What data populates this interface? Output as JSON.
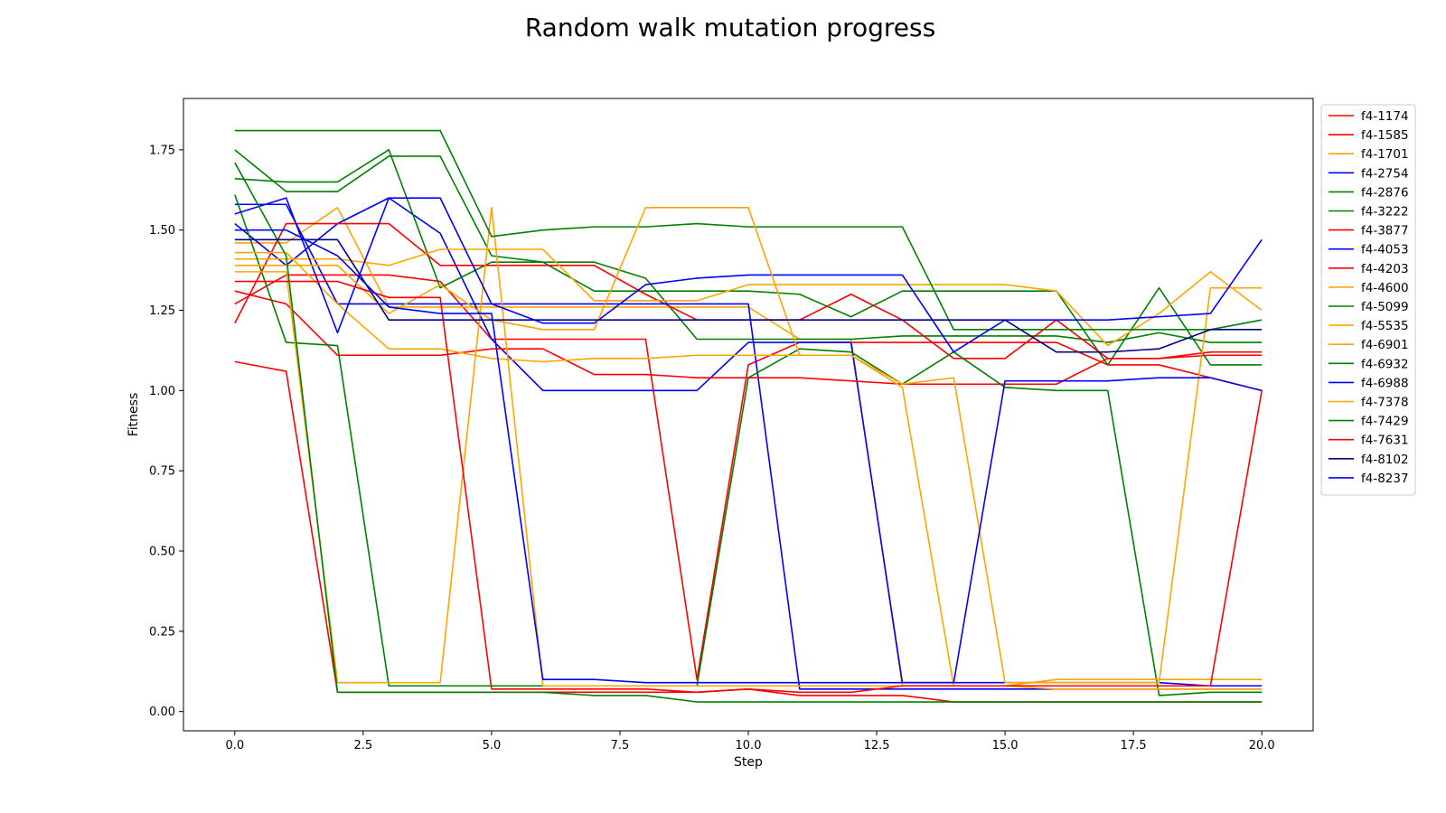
{
  "chart_data": {
    "type": "line",
    "title": "Random walk mutation progress",
    "xlabel": "Step",
    "ylabel": "Fitness",
    "xlim": [
      -1.0,
      21.0
    ],
    "ylim": [
      -0.06,
      1.91
    ],
    "xticks": [
      0.0,
      2.5,
      5.0,
      7.5,
      10.0,
      12.5,
      15.0,
      17.5,
      20.0
    ],
    "xtick_labels": [
      "0.0",
      "2.5",
      "5.0",
      "7.5",
      "10.0",
      "12.5",
      "15.0",
      "17.5",
      "20.0"
    ],
    "yticks": [
      0.0,
      0.25,
      0.5,
      0.75,
      1.0,
      1.25,
      1.5,
      1.75
    ],
    "ytick_labels": [
      "0.00",
      "0.25",
      "0.50",
      "0.75",
      "1.00",
      "1.25",
      "1.50",
      "1.75"
    ],
    "grid": false,
    "legend_position": "outside-right-top",
    "x": [
      0,
      1,
      2,
      3,
      4,
      5,
      6,
      7,
      8,
      9,
      10,
      11,
      12,
      13,
      14,
      15,
      16,
      17,
      18,
      19,
      20
    ],
    "series": [
      {
        "name": "f4-1174",
        "color": "#ff0000",
        "values": [
          1.27,
          1.36,
          1.36,
          1.36,
          1.34,
          1.16,
          1.16,
          1.16,
          1.16,
          0.1,
          1.08,
          1.15,
          1.15,
          1.15,
          1.15,
          1.15,
          1.15,
          1.08,
          1.08,
          1.04,
          1.0
        ]
      },
      {
        "name": "f4-1585",
        "color": "#ff0000",
        "values": [
          1.09,
          1.06,
          0.06,
          0.06,
          0.06,
          0.06,
          0.06,
          0.06,
          0.06,
          0.06,
          0.07,
          0.05,
          0.05,
          0.05,
          0.03,
          0.03,
          0.03,
          0.03,
          0.03,
          0.03,
          0.03
        ]
      },
      {
        "name": "f4-1701",
        "color": "#ffa500",
        "values": [
          1.46,
          1.46,
          1.57,
          1.26,
          1.26,
          1.26,
          1.26,
          1.26,
          1.26,
          1.26,
          1.26,
          1.16,
          1.16,
          0.08,
          0.08,
          0.08,
          0.08,
          0.08,
          0.08,
          0.08,
          0.08
        ]
      },
      {
        "name": "f4-2754",
        "color": "#0000ff",
        "values": [
          1.52,
          1.39,
          1.52,
          1.6,
          1.49,
          1.16,
          1.0,
          1.0,
          1.0,
          1.0,
          1.15,
          1.15,
          1.15,
          0.09,
          0.09,
          0.09,
          0.09,
          0.09,
          0.09,
          0.08,
          0.08
        ]
      },
      {
        "name": "f4-2876",
        "color": "#008000",
        "values": [
          1.75,
          1.62,
          1.62,
          1.73,
          1.73,
          1.42,
          1.4,
          1.4,
          1.35,
          1.16,
          1.16,
          1.16,
          1.16,
          1.17,
          1.17,
          1.17,
          1.17,
          1.15,
          1.18,
          1.15,
          1.15
        ]
      },
      {
        "name": "f4-3222",
        "color": "#008000",
        "values": [
          1.66,
          1.65,
          1.65,
          1.75,
          1.32,
          1.4,
          1.4,
          1.31,
          1.31,
          1.31,
          1.31,
          1.3,
          1.23,
          1.31,
          1.31,
          1.31,
          1.31,
          1.08,
          1.32,
          1.08,
          1.08
        ]
      },
      {
        "name": "f4-3877",
        "color": "#ff0000",
        "values": [
          1.21,
          1.52,
          1.52,
          1.52,
          1.39,
          1.39,
          1.39,
          1.39,
          1.3,
          1.22,
          1.22,
          1.22,
          1.3,
          1.22,
          1.1,
          1.1,
          1.22,
          1.1,
          1.1,
          1.11,
          1.11
        ]
      },
      {
        "name": "f4-4053",
        "color": "#0000ff",
        "values": [
          1.58,
          1.58,
          1.27,
          1.27,
          1.27,
          1.27,
          1.27,
          1.27,
          1.27,
          1.27,
          1.27,
          0.07,
          0.07,
          0.07,
          0.07,
          0.07,
          0.07,
          0.07,
          0.07,
          0.07,
          0.07
        ]
      },
      {
        "name": "f4-4203",
        "color": "#ff0000",
        "values": [
          1.31,
          1.27,
          1.11,
          1.11,
          1.11,
          1.13,
          1.13,
          1.05,
          1.05,
          1.04,
          1.04,
          1.04,
          1.03,
          1.02,
          1.02,
          1.02,
          1.02,
          1.1,
          1.1,
          1.12,
          1.12
        ]
      },
      {
        "name": "f4-4600",
        "color": "#ffa500",
        "values": [
          1.41,
          1.41,
          1.41,
          1.39,
          1.44,
          1.44,
          1.44,
          1.28,
          1.28,
          1.28,
          1.33,
          1.33,
          1.33,
          1.33,
          1.33,
          1.33,
          1.31,
          1.14,
          1.24,
          1.37,
          1.25
        ]
      },
      {
        "name": "f4-5099",
        "color": "#008000",
        "values": [
          1.61,
          1.15,
          1.14,
          0.08,
          0.08,
          0.08,
          0.08,
          0.08,
          0.08,
          0.08,
          1.04,
          1.13,
          1.12,
          1.02,
          1.12,
          1.01,
          1.0,
          1.0,
          0.05,
          0.06,
          0.06
        ]
      },
      {
        "name": "f4-5535",
        "color": "#ffa500",
        "values": [
          1.37,
          1.37,
          0.09,
          0.09,
          0.09,
          1.57,
          0.08,
          0.08,
          0.08,
          0.08,
          0.08,
          0.08,
          0.08,
          0.08,
          0.08,
          0.08,
          0.1,
          0.1,
          0.1,
          0.1,
          0.1
        ]
      },
      {
        "name": "f4-6901",
        "color": "#ffa500",
        "values": [
          1.43,
          1.43,
          1.27,
          1.13,
          1.13,
          1.1,
          1.09,
          1.1,
          1.1,
          1.11,
          1.11,
          1.11,
          1.11,
          1.02,
          1.04,
          0.09,
          0.09,
          0.09,
          0.09,
          1.32,
          1.32
        ]
      },
      {
        "name": "f4-6932",
        "color": "#008000",
        "values": [
          1.81,
          1.81,
          1.81,
          1.81,
          1.81,
          1.48,
          1.5,
          1.51,
          1.51,
          1.52,
          1.51,
          1.51,
          1.51,
          1.51,
          1.19,
          1.19,
          1.19,
          1.19,
          1.19,
          1.19,
          1.22
        ]
      },
      {
        "name": "f4-6988",
        "color": "#0000ff",
        "values": [
          1.55,
          1.6,
          1.18,
          1.6,
          1.6,
          1.27,
          1.21,
          1.21,
          1.33,
          1.35,
          1.36,
          1.36,
          1.36,
          1.36,
          1.12,
          1.22,
          1.22,
          1.22,
          1.23,
          1.24,
          1.47
        ]
      },
      {
        "name": "f4-7378",
        "color": "#ffa500",
        "values": [
          1.39,
          1.39,
          1.39,
          1.24,
          1.33,
          1.22,
          1.19,
          1.19,
          1.57,
          1.57,
          1.57,
          1.11,
          1.11,
          1.01,
          0.08,
          0.08,
          0.07,
          0.07,
          0.07,
          0.07,
          0.07
        ]
      },
      {
        "name": "f4-7429",
        "color": "#008000",
        "values": [
          1.71,
          1.42,
          0.06,
          0.06,
          0.06,
          0.06,
          0.06,
          0.05,
          0.05,
          0.03,
          0.03,
          0.03,
          0.03,
          0.03,
          0.03,
          0.03,
          0.03,
          0.03,
          0.03,
          0.03,
          0.03
        ]
      },
      {
        "name": "f4-7631",
        "color": "#ff0000",
        "values": [
          1.34,
          1.34,
          1.34,
          1.29,
          1.29,
          0.07,
          0.07,
          0.07,
          0.07,
          0.06,
          0.07,
          0.06,
          0.06,
          0.08,
          0.08,
          0.08,
          0.08,
          0.08,
          0.08,
          0.08,
          1.0
        ]
      },
      {
        "name": "f4-8102",
        "color": "#00008b",
        "values": [
          1.47,
          1.47,
          1.47,
          1.22,
          1.22,
          1.22,
          1.22,
          1.22,
          1.22,
          1.22,
          1.22,
          1.22,
          1.22,
          1.22,
          1.22,
          1.22,
          1.12,
          1.12,
          1.13,
          1.19,
          1.19
        ]
      },
      {
        "name": "f4-8237",
        "color": "#0000ff",
        "values": [
          1.5,
          1.5,
          1.42,
          1.26,
          1.24,
          1.24,
          0.1,
          0.1,
          0.09,
          0.09,
          0.09,
          0.09,
          0.09,
          0.09,
          0.09,
          1.03,
          1.03,
          1.03,
          1.04,
          1.04,
          1.0
        ]
      }
    ]
  }
}
